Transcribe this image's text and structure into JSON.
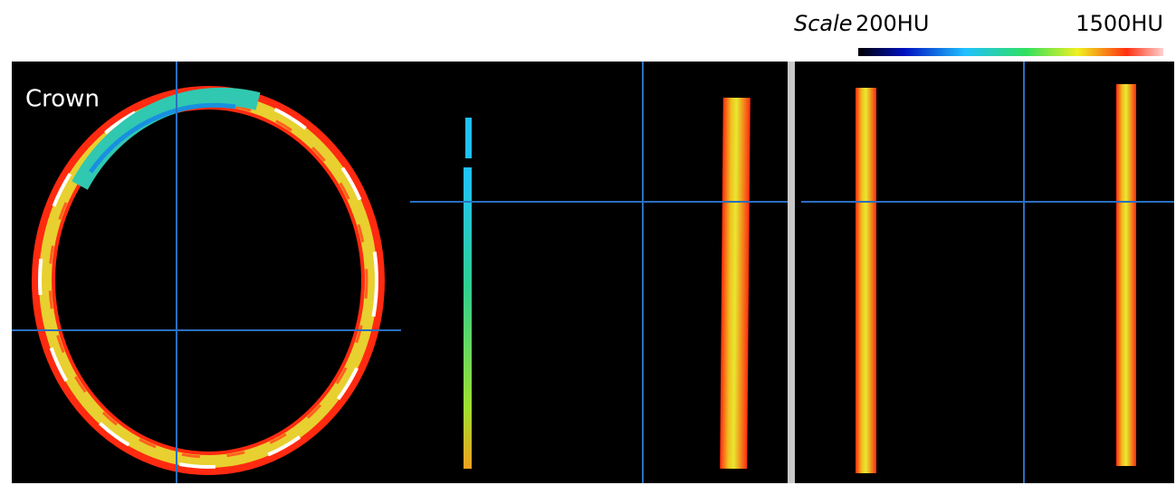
{
  "scale_bar": {
    "title": "Scale",
    "min_label": "200HU",
    "max_label": "1500HU"
  },
  "panels": [
    {
      "label": "Crown"
    }
  ]
}
